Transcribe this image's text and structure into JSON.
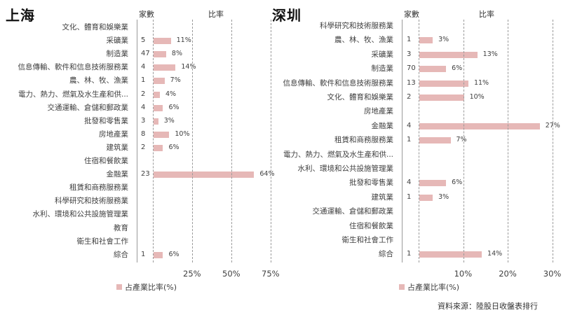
{
  "source": "資料來源：陸股日收盤表排行",
  "chart_data": [
    {
      "type": "bar",
      "title": "上海",
      "orientation": "horizontal",
      "column_headers": [
        "家數",
        "比率"
      ],
      "categories": [
        "文化、體育和娛樂業",
        "采礦業",
        "制造業",
        "信息傳輸、軟件和信息技術服務業",
        "農、林、牧、漁業",
        "電力、熱力、燃氣及水生產和供...",
        "交通運輸、倉儲和郵政業",
        "批發和零售業",
        "房地產業",
        "建筑業",
        "住宿和餐飲業",
        "金融業",
        "租賃和商務服務業",
        "科學研究和技術服務業",
        "水利、環境和公共設施管理業",
        "教育",
        "衛生和社會工作",
        "綜合"
      ],
      "counts": [
        null,
        5,
        47,
        4,
        1,
        2,
        4,
        3,
        8,
        2,
        null,
        23,
        null,
        null,
        null,
        null,
        null,
        1
      ],
      "series": [
        {
          "name": "占產業比率(%)",
          "values": [
            null,
            11,
            8,
            14,
            7,
            4,
            6,
            3,
            10,
            6,
            null,
            64,
            null,
            null,
            null,
            null,
            null,
            6
          ]
        }
      ],
      "xticks": [
        "25%",
        "50%",
        "75%"
      ],
      "xlim": [
        0,
        75
      ],
      "grid": "dashed vertical",
      "legend": "bottom",
      "xlabel": "",
      "ylabel": ""
    },
    {
      "type": "bar",
      "title": "深圳",
      "orientation": "horizontal",
      "column_headers": [
        "家數",
        "比率"
      ],
      "categories": [
        "科學研究和技術服務業",
        "農、林、牧、漁業",
        "采礦業",
        "制造業",
        "信息傳輸、軟件和信息技術服務業",
        "文化、體育和娛樂業",
        "房地產業",
        "金融業",
        "租賃和商務服務業",
        "電力、熱力、燃氣及水生產和供...",
        "水利、環境和公共設施管理業",
        "批發和零售業",
        "建筑業",
        "交通運輸、倉儲和郵政業",
        "住宿和餐飲業",
        "衛生和社會工作",
        "綜合"
      ],
      "counts": [
        null,
        1,
        3,
        70,
        13,
        2,
        null,
        4,
        1,
        null,
        null,
        4,
        1,
        null,
        null,
        null,
        1
      ],
      "series": [
        {
          "name": "占產業比率(%)",
          "values": [
            null,
            3,
            13,
            6,
            11,
            10,
            null,
            27,
            7,
            null,
            null,
            6,
            3,
            null,
            null,
            null,
            14
          ]
        }
      ],
      "xticks": [
        "10%",
        "20%",
        "30%"
      ],
      "xlim": [
        0,
        30
      ],
      "grid": "dashed vertical",
      "legend": "bottom",
      "xlabel": "",
      "ylabel": ""
    }
  ]
}
